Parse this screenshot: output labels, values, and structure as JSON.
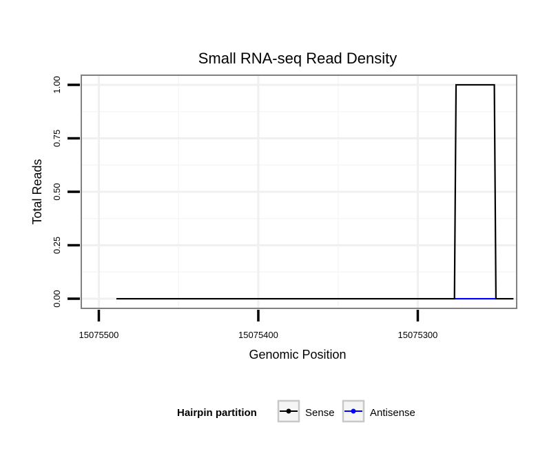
{
  "chart_data": {
    "type": "line",
    "title": "Small RNA-seq Read Density",
    "xlabel": "Genomic Position",
    "ylabel": "Total Reads",
    "x_reversed": true,
    "xlim": [
      15075511,
      15075238
    ],
    "ylim": [
      -0.045,
      1.045
    ],
    "x_ticks": [
      15075500,
      15075400,
      15075300
    ],
    "x_tick_labels": [
      "15075500",
      "15075400",
      "15075300"
    ],
    "y_ticks": [
      0,
      0.25,
      0.5,
      0.75,
      1.0
    ],
    "y_tick_labels": [
      "0.00",
      "0.25",
      "0.50",
      "0.75",
      "1.00"
    ],
    "grid": true,
    "series": [
      {
        "name": "Sense",
        "color": "#000000",
        "x": [
          15075489,
          15075277,
          15075276,
          15075252,
          15075251,
          15075240
        ],
        "y": [
          0,
          0,
          1,
          1,
          0,
          0
        ]
      },
      {
        "name": "Antisense",
        "color": "#0000ff",
        "x": [
          15075277,
          15075251
        ],
        "y": [
          0,
          0
        ]
      }
    ],
    "legend": {
      "title": "Hairpin partition",
      "position": "bottom",
      "entries": [
        "Sense",
        "Antisense"
      ]
    }
  }
}
